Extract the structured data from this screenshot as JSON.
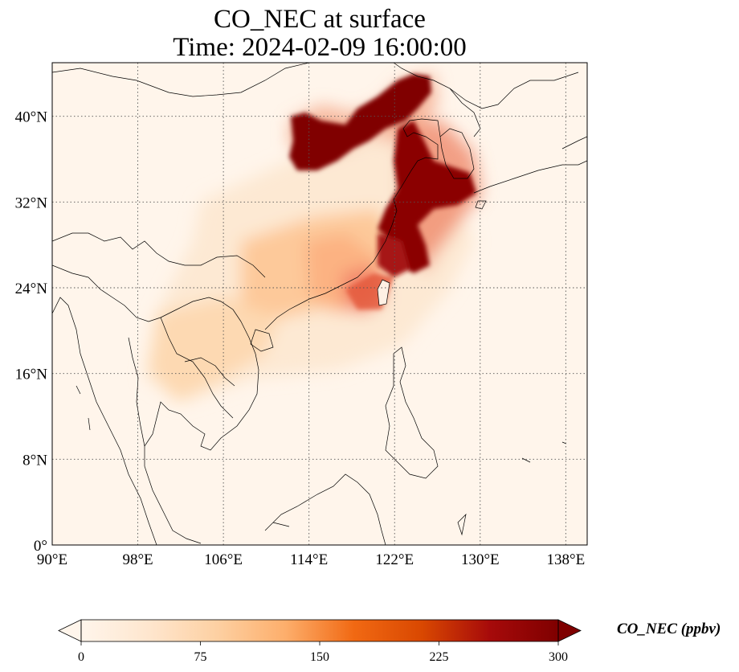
{
  "title": {
    "line1": "CO_NEC at surface",
    "line2": "Time: 2024-02-09 16:00:00"
  },
  "map": {
    "lon_range": [
      90,
      140
    ],
    "lat_range": [
      0,
      45
    ],
    "lon_ticks": [
      {
        "value": 90,
        "label": "90°E"
      },
      {
        "value": 98,
        "label": "98°E"
      },
      {
        "value": 106,
        "label": "106°E"
      },
      {
        "value": 114,
        "label": "114°E"
      },
      {
        "value": 122,
        "label": "122°E"
      },
      {
        "value": 130,
        "label": "130°E"
      },
      {
        "value": 138,
        "label": "138°E"
      }
    ],
    "lat_ticks": [
      {
        "value": 0,
        "label": "0°"
      },
      {
        "value": 8,
        "label": "8°N"
      },
      {
        "value": 16,
        "label": "16°N"
      },
      {
        "value": 24,
        "label": "24°N"
      },
      {
        "value": 32,
        "label": "32°N"
      },
      {
        "value": 40,
        "label": "40°N"
      }
    ],
    "gridlines": true,
    "colormap": "OrRd",
    "background_color": "#fff5eb"
  },
  "colorbar": {
    "label": "CO_NEC (ppbv)",
    "min": 0,
    "max": 300,
    "extend": "both",
    "ticks": [
      {
        "value": 0,
        "label": "0"
      },
      {
        "value": 75,
        "label": "75"
      },
      {
        "value": 150,
        "label": "150"
      },
      {
        "value": 225,
        "label": "225"
      },
      {
        "value": 300,
        "label": "300"
      }
    ],
    "colors": [
      "#fff5eb",
      "#fee6ce",
      "#fdd0a2",
      "#fdae6b",
      "#f16913",
      "#d94801",
      "#a60a0a",
      "#7f0000"
    ]
  }
}
